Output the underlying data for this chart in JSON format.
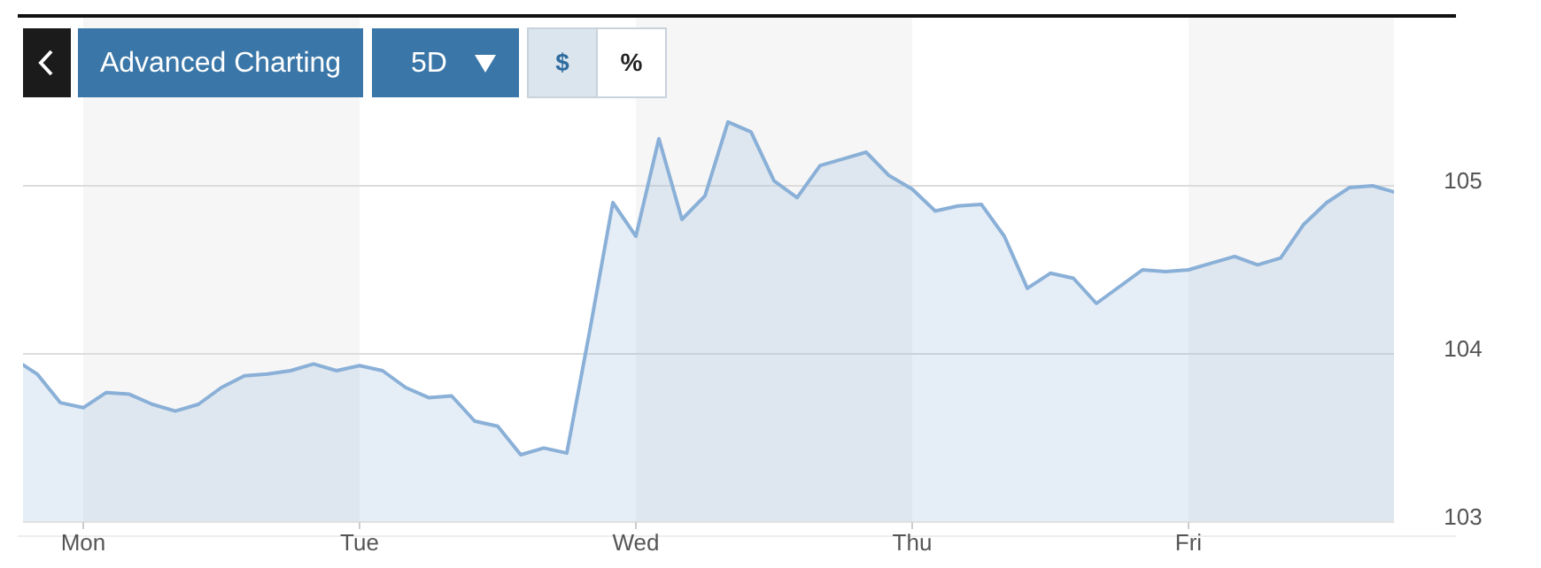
{
  "chart_data": {
    "type": "area",
    "annotations": [
      "Advanced Charting",
      "5D",
      "$",
      "%"
    ],
    "categories": [
      null,
      null,
      null,
      "Mon",
      null,
      null,
      null,
      null,
      null,
      null,
      null,
      null,
      null,
      null,
      null,
      "Tue",
      null,
      null,
      null,
      null,
      null,
      null,
      null,
      null,
      null,
      null,
      null,
      "Wed",
      null,
      null,
      null,
      null,
      null,
      null,
      null,
      null,
      null,
      null,
      null,
      "Thu",
      null,
      null,
      null,
      null,
      null,
      null,
      null,
      null,
      null,
      null,
      null,
      "Fri",
      null,
      null,
      null,
      null,
      null,
      null,
      null,
      null,
      null
    ],
    "series": [
      {
        "color": "#8ab0d8",
        "values": [
          103.97,
          103.88,
          103.71,
          103.68,
          103.77,
          103.76,
          103.7,
          103.66,
          103.7,
          103.8,
          103.87,
          103.88,
          103.9,
          103.94,
          103.9,
          103.93,
          103.9,
          103.8,
          103.74,
          103.75,
          103.6,
          103.57,
          103.4,
          103.44,
          103.41,
          104.14,
          104.9,
          104.7,
          105.28,
          104.8,
          104.94,
          105.38,
          105.32,
          105.03,
          104.93,
          105.12,
          105.16,
          105.2,
          105.06,
          104.98,
          104.85,
          104.88,
          104.89,
          104.7,
          104.39,
          104.48,
          104.45,
          104.3,
          104.4,
          104.5,
          104.49,
          104.5,
          104.54,
          104.58,
          104.53,
          104.57,
          104.77,
          104.9,
          104.99,
          105.0,
          104.96
        ]
      }
    ],
    "ylim": [
      103,
      106
    ],
    "yticks": [
      103,
      104,
      105
    ],
    "grid": "y",
    "marker": "none"
  }
}
